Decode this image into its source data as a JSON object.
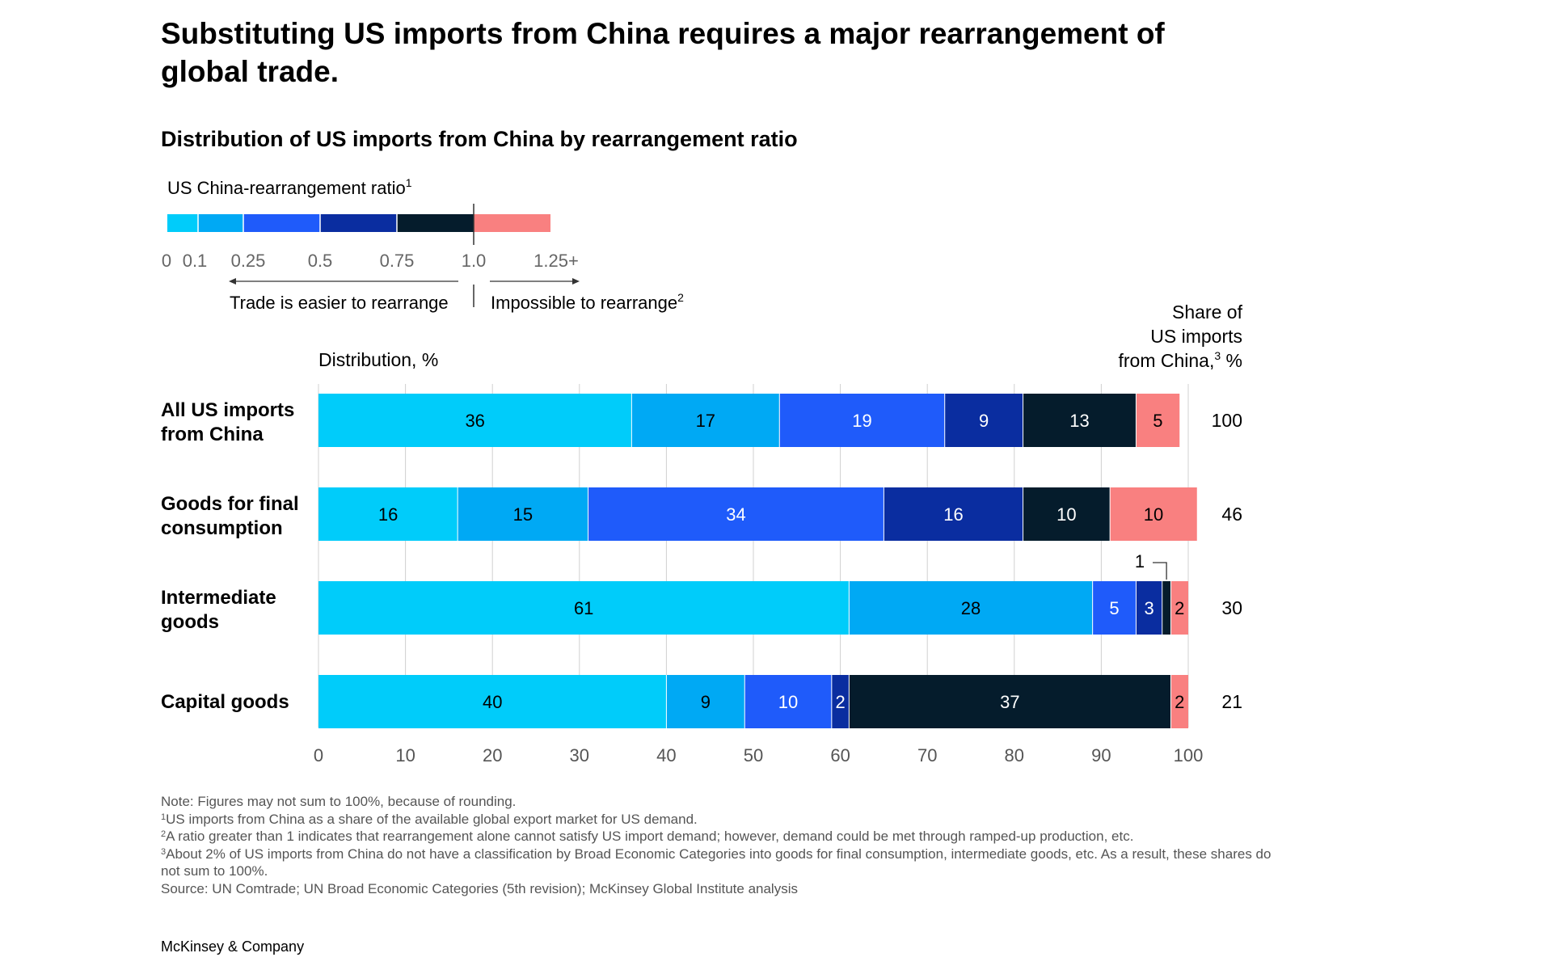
{
  "title": "Substituting US imports from China requires a major rearrangement of global trade.",
  "subtitle": "Distribution of US imports from China by rearrangement ratio",
  "colors": {
    "c1": "#00CCFA",
    "c2": "#00A9F4",
    "c3": "#1F5BFA",
    "c4": "#0A2DA0",
    "c5": "#051C2C",
    "c6": "#F98080",
    "grid": "#D0D0D0",
    "axis_text": "#555555",
    "text": "#000000"
  },
  "legend": {
    "title": "US China-rearrangement ratio",
    "title_sup": "1",
    "ticks": [
      "0",
      "0.1",
      "0.25",
      "0.5",
      "0.75",
      "1.0",
      "1.25+"
    ],
    "left_note": "Trade is easier to rearrange",
    "right_note": "Impossible to rearrange",
    "right_note_sup": "2"
  },
  "chart_data": {
    "type": "bar",
    "orientation": "horizontal",
    "stacked": true,
    "xlabel": "Distribution, %",
    "xlim": [
      0,
      100
    ],
    "xticks": [
      "0",
      "10",
      "20",
      "30",
      "40",
      "50",
      "60",
      "70",
      "80",
      "90",
      "100"
    ],
    "grid": true,
    "right_header": [
      "Share of",
      "US imports",
      "from China,"
    ],
    "right_header_sup": "3",
    "right_header_suffix": " %",
    "segment_colors": [
      "c1",
      "c2",
      "c3",
      "c4",
      "c5",
      "c6"
    ],
    "categories": [
      {
        "label": [
          "All US imports",
          "from China"
        ],
        "values": [
          36,
          17,
          19,
          9,
          13,
          5
        ],
        "share": "100"
      },
      {
        "label": [
          "Goods for final",
          "consumption"
        ],
        "values": [
          16,
          15,
          34,
          16,
          10,
          10
        ],
        "share": "46"
      },
      {
        "label": [
          "Intermediate",
          "goods"
        ],
        "values": [
          61,
          28,
          5,
          3,
          1,
          2
        ],
        "share": "30"
      },
      {
        "label": [
          "Capital goods"
        ],
        "values": [
          40,
          9,
          10,
          2,
          37,
          2
        ],
        "share": "21"
      }
    ],
    "callout": {
      "label": "1",
      "category_index": 2,
      "segment_index": 4
    }
  },
  "notes": [
    {
      "sup": "",
      "text": "Note: Figures may not sum to 100%, because of rounding."
    },
    {
      "sup": "1",
      "text": "US imports from China as a share of the available global export market for US demand."
    },
    {
      "sup": "2",
      "text": "A ratio greater than 1 indicates that rearrangement alone cannot satisfy US import demand; however, demand could be met through ramped-up production, etc."
    },
    {
      "sup": "3",
      "text": "About 2% of US imports from China do not have a classification by Broad Economic Categories into goods for final consumption, intermediate goods, etc. As a result, these shares do not sum to 100%."
    },
    {
      "sup": "",
      "text": "Source: UN Comtrade; UN Broad Economic Categories (5th revision); McKinsey Global Institute analysis"
    }
  ],
  "brand": "McKinsey & Company"
}
